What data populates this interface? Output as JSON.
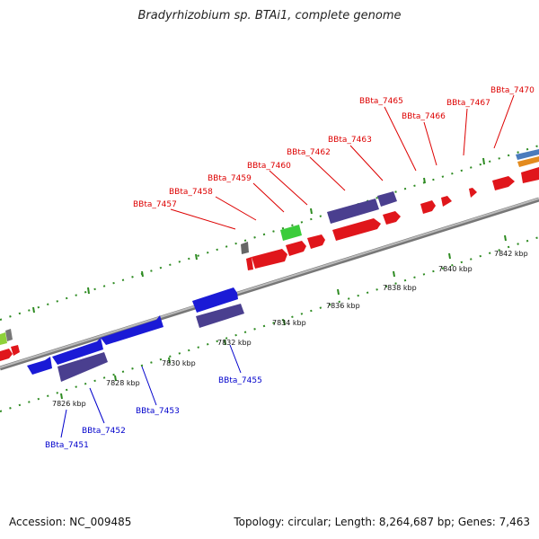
{
  "title": "Bradyrhizobium sp. BTAi1, complete genome",
  "accession": "Accession: NC_009485",
  "topology": "Topology: circular; Length: 8,264,687 bp; Genes: 7,463",
  "colors": {
    "forward_gene": "#e0161b",
    "reverse_gene": "#1a1ad6",
    "purple_gene": "#4a3f8f",
    "green_gene": "#2ecc2e",
    "tick": "#2e8b22",
    "backbone": "#8a8a8a",
    "label_red": "#dd0000",
    "label_blue": "#0000cc"
  },
  "tick_labels": [
    "7826 kbp",
    "7828 kbp",
    "7830 kbp",
    "7832 kbp",
    "7834 kbp",
    "7836 kbp",
    "7838 kbp",
    "7840 kbp",
    "7842 kbp"
  ],
  "upper_gene_labels": [
    "BBta_7457",
    "BBta_7458",
    "BBta_7459",
    "BBta_7460",
    "BBta_7462",
    "BBta_7463",
    "BBta_7465",
    "BBta_7466",
    "BBta_7467",
    "BBta_7470"
  ],
  "lower_gene_labels": [
    "BBta_7451",
    "BBta_7452",
    "BBta_7453",
    "BBta_7455"
  ]
}
